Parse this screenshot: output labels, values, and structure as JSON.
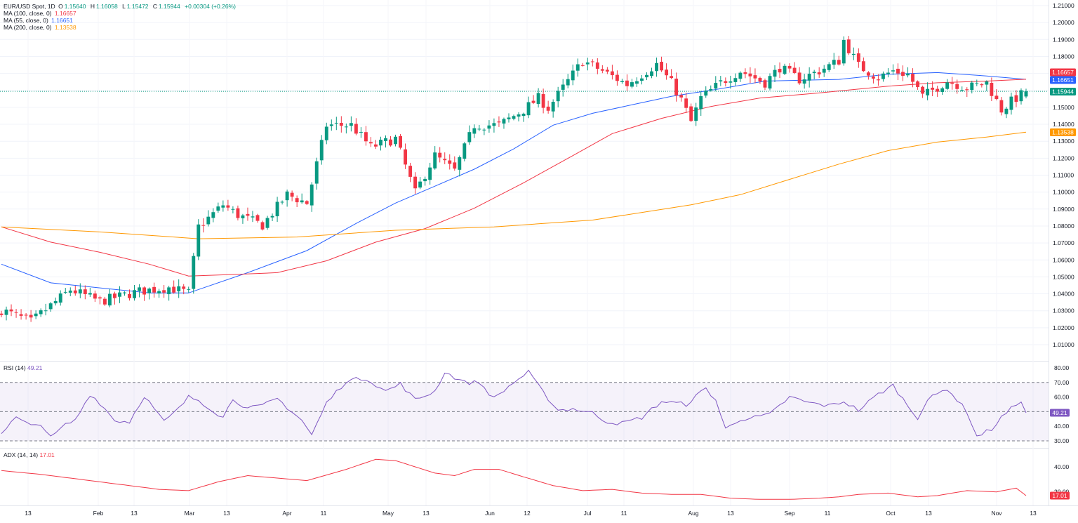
{
  "header": {
    "symbol": "EUR/USD Spot, 1D",
    "ohlc": [
      {
        "k": "O",
        "v": "1.15640"
      },
      {
        "k": "H",
        "v": "1.16058"
      },
      {
        "k": "L",
        "v": "1.15472"
      },
      {
        "k": "C",
        "v": "1.15944"
      }
    ],
    "change": "+0.00304 (+0.26%)"
  },
  "indicators": [
    {
      "label": "MA (100, close, 0)",
      "value": "1.16657",
      "color": "#f23645"
    },
    {
      "label": "MA (55, close, 0)",
      "value": "1.16651",
      "color": "#2962ff"
    },
    {
      "label": "MA (200, close, 0)",
      "value": "1.13538",
      "color": "#ff9800"
    }
  ],
  "rsi": {
    "label": "RSI (14)",
    "value": "49.21",
    "color": "#7e57c2"
  },
  "adx": {
    "label": "ADX (14, 14)",
    "value": "17.01",
    "color": "#f23645"
  },
  "price_badges": [
    {
      "text": "1.16657",
      "price": 1.16657,
      "color": "#f23645"
    },
    {
      "text": "1.16651",
      "price": 1.16651,
      "color": "#2962ff"
    },
    {
      "text": "1.15944",
      "price": 1.15944,
      "color": "#089981"
    },
    {
      "text": "1.13538",
      "price": 1.13538,
      "color": "#ff9800"
    }
  ],
  "colors": {
    "up": "#089981",
    "down": "#f23645",
    "ma55": "#2962ff",
    "ma100": "#f23645",
    "ma200": "#ff9800",
    "rsi": "#7e57c2",
    "adx": "#f23645"
  },
  "chart_data": [
    {
      "type": "candlestick",
      "title": "EUR/USD Spot, 1D",
      "x_labels": [
        "13",
        "Feb",
        "13",
        "Mar",
        "13",
        "Apr",
        "11",
        "May",
        "13",
        "Jun",
        "12",
        "Jul",
        "11",
        "Aug",
        "13",
        "Sep",
        "11",
        "Oct",
        "13",
        "Nov",
        "13"
      ],
      "y_ticks": [
        "1.21000",
        "1.20000",
        "1.19000",
        "1.18000",
        "1.17000",
        "1.16000",
        "1.15000",
        "1.14000",
        "1.13000",
        "1.12000",
        "1.11000",
        "1.10000",
        "1.09000",
        "1.08000",
        "1.07000",
        "1.06000",
        "1.05000",
        "1.04000",
        "1.03000",
        "1.02000",
        "1.01000"
      ],
      "ylim": [
        1.0,
        1.21
      ],
      "close_path": [
        {
          "i": 0,
          "c": 1.0305
        },
        {
          "i": 6,
          "c": 1.0235
        },
        {
          "i": 14,
          "c": 1.0425
        },
        {
          "i": 20,
          "c": 1.0355
        },
        {
          "i": 28,
          "c": 1.0415
        },
        {
          "i": 34,
          "c": 1.0438
        },
        {
          "i": 38,
          "c": 1.0405
        },
        {
          "i": 40,
          "c": 1.0795
        },
        {
          "i": 45,
          "c": 1.0925
        },
        {
          "i": 48,
          "c": 1.0865
        },
        {
          "i": 53,
          "c": 1.0805
        },
        {
          "i": 58,
          "c": 1.0985
        },
        {
          "i": 62,
          "c": 1.0935
        },
        {
          "i": 66,
          "c": 1.1395
        },
        {
          "i": 71,
          "c": 1.1395
        },
        {
          "i": 75,
          "c": 1.1265
        },
        {
          "i": 80,
          "c": 1.1315
        },
        {
          "i": 84,
          "c": 1.0995
        },
        {
          "i": 88,
          "c": 1.1215
        },
        {
          "i": 92,
          "c": 1.1125
        },
        {
          "i": 96,
          "c": 1.1395
        },
        {
          "i": 101,
          "c": 1.1395
        },
        {
          "i": 106,
          "c": 1.1485
        },
        {
          "i": 109,
          "c": 1.1555
        },
        {
          "i": 111,
          "c": 1.1495
        },
        {
          "i": 114,
          "c": 1.1615
        },
        {
          "i": 118,
          "c": 1.1775
        },
        {
          "i": 122,
          "c": 1.1715
        },
        {
          "i": 127,
          "c": 1.1635
        },
        {
          "i": 133,
          "c": 1.1755
        },
        {
          "i": 136,
          "c": 1.1645
        },
        {
          "i": 138,
          "c": 1.1545
        },
        {
          "i": 140,
          "c": 1.1415
        },
        {
          "i": 142,
          "c": 1.1555
        },
        {
          "i": 146,
          "c": 1.1645
        },
        {
          "i": 150,
          "c": 1.1715
        },
        {
          "i": 155,
          "c": 1.1645
        },
        {
          "i": 158,
          "c": 1.1735
        },
        {
          "i": 162,
          "c": 1.1665
        },
        {
          "i": 166,
          "c": 1.1715
        },
        {
          "i": 170,
          "c": 1.1775
        },
        {
          "i": 171,
          "c": 1.1895
        },
        {
          "i": 174,
          "c": 1.1745
        },
        {
          "i": 178,
          "c": 1.1675
        },
        {
          "i": 181,
          "c": 1.1715
        },
        {
          "i": 184,
          "c": 1.1695
        },
        {
          "i": 187,
          "c": 1.1565
        },
        {
          "i": 192,
          "c": 1.1655
        },
        {
          "i": 196,
          "c": 1.1615
        },
        {
          "i": 200,
          "c": 1.1645
        },
        {
          "i": 203,
          "c": 1.1485
        },
        {
          "i": 205,
          "c": 1.1535
        },
        {
          "i": 208,
          "c": 1.1594
        }
      ],
      "ma_series": [
        {
          "name": "MA (55, close, 0)",
          "points": [
            [
              0,
              1.0575
            ],
            [
              10,
              1.0465
            ],
            [
              20,
              1.0435
            ],
            [
              30,
              1.0405
            ],
            [
              38,
              1.0405
            ],
            [
              50,
              1.0525
            ],
            [
              62,
              1.0655
            ],
            [
              72,
              1.0815
            ],
            [
              80,
              1.0935
            ],
            [
              88,
              1.1035
            ],
            [
              96,
              1.1135
            ],
            [
              104,
              1.1255
            ],
            [
              112,
              1.1395
            ],
            [
              120,
              1.1465
            ],
            [
              128,
              1.1515
            ],
            [
              136,
              1.1565
            ],
            [
              145,
              1.1605
            ],
            [
              155,
              1.1655
            ],
            [
              170,
              1.1665
            ],
            [
              180,
              1.1695
            ],
            [
              190,
              1.1705
            ],
            [
              200,
              1.1685
            ],
            [
              208,
              1.16651
            ]
          ]
        },
        {
          "name": "MA (100, close, 0)",
          "points": [
            [
              0,
              1.0795
            ],
            [
              10,
              1.0705
            ],
            [
              20,
              1.0645
            ],
            [
              30,
              1.0575
            ],
            [
              38,
              1.0505
            ],
            [
              48,
              1.0515
            ],
            [
              56,
              1.0525
            ],
            [
              66,
              1.0595
            ],
            [
              76,
              1.0705
            ],
            [
              86,
              1.0785
            ],
            [
              96,
              1.0905
            ],
            [
              106,
              1.1055
            ],
            [
              116,
              1.1215
            ],
            [
              124,
              1.1345
            ],
            [
              134,
              1.1435
            ],
            [
              144,
              1.1505
            ],
            [
              154,
              1.1555
            ],
            [
              166,
              1.1585
            ],
            [
              180,
              1.1625
            ],
            [
              190,
              1.1645
            ],
            [
              200,
              1.1655
            ],
            [
              208,
              1.16657
            ]
          ]
        },
        {
          "name": "MA (200, close, 0)",
          "points": [
            [
              0,
              1.0795
            ],
            [
              20,
              1.0765
            ],
            [
              40,
              1.0725
            ],
            [
              60,
              1.0735
            ],
            [
              80,
              1.0775
            ],
            [
              100,
              1.0795
            ],
            [
              120,
              1.0835
            ],
            [
              140,
              1.0925
            ],
            [
              150,
              1.0985
            ],
            [
              160,
              1.1075
            ],
            [
              170,
              1.1165
            ],
            [
              180,
              1.1245
            ],
            [
              190,
              1.1295
            ],
            [
              200,
              1.1325
            ],
            [
              208,
              1.13538
            ]
          ]
        }
      ]
    },
    {
      "type": "line",
      "name": "RSI (14)",
      "y_ticks": [
        "80.00",
        "70.00",
        "60.00",
        "50.00",
        "40.00",
        "30.00"
      ],
      "ylim": [
        28,
        81
      ],
      "bands": [
        30,
        50,
        70
      ],
      "points": [
        [
          0,
          35
        ],
        [
          3,
          46
        ],
        [
          6,
          40
        ],
        [
          8,
          42
        ],
        [
          10,
          32
        ],
        [
          13,
          41
        ],
        [
          15,
          44
        ],
        [
          18,
          62
        ],
        [
          20,
          56
        ],
        [
          23,
          44
        ],
        [
          26,
          43
        ],
        [
          29,
          61
        ],
        [
          33,
          43
        ],
        [
          36,
          52
        ],
        [
          38,
          60
        ],
        [
          40,
          58
        ],
        [
          45,
          46
        ],
        [
          47,
          59
        ],
        [
          50,
          52
        ],
        [
          53,
          54
        ],
        [
          56,
          59
        ],
        [
          61,
          44
        ],
        [
          63,
          34
        ],
        [
          66,
          56
        ],
        [
          70,
          71
        ],
        [
          74,
          73
        ],
        [
          78,
          64
        ],
        [
          81,
          69
        ],
        [
          84,
          58
        ],
        [
          88,
          64
        ],
        [
          90,
          77
        ],
        [
          94,
          70
        ],
        [
          97,
          70
        ],
        [
          100,
          59
        ],
        [
          104,
          70
        ],
        [
          107,
          77
        ],
        [
          110,
          63
        ],
        [
          113,
          51
        ],
        [
          116,
          52
        ],
        [
          120,
          49
        ],
        [
          123,
          43
        ],
        [
          126,
          42
        ],
        [
          130,
          46
        ],
        [
          134,
          57
        ],
        [
          139,
          55
        ],
        [
          143,
          66
        ],
        [
          145,
          58
        ],
        [
          147,
          38
        ],
        [
          150,
          45
        ],
        [
          153,
          46
        ],
        [
          156,
          48
        ],
        [
          160,
          60
        ],
        [
          164,
          56
        ],
        [
          168,
          54
        ],
        [
          171,
          57
        ],
        [
          174,
          51
        ],
        [
          178,
          62
        ],
        [
          181,
          68
        ],
        [
          184,
          54
        ],
        [
          186,
          46
        ],
        [
          188,
          58
        ],
        [
          192,
          66
        ],
        [
          196,
          50
        ],
        [
          198,
          33
        ],
        [
          201,
          38
        ],
        [
          203,
          46
        ],
        [
          205,
          52
        ],
        [
          207,
          58
        ],
        [
          208,
          49.21
        ]
      ]
    },
    {
      "type": "line",
      "name": "ADX (14, 14)",
      "y_ticks": [
        "40.00",
        "20.00"
      ],
      "ylim": [
        12,
        50
      ],
      "points": [
        [
          0,
          37
        ],
        [
          8,
          34
        ],
        [
          16,
          30
        ],
        [
          24,
          26
        ],
        [
          32,
          22
        ],
        [
          38,
          21
        ],
        [
          44,
          28
        ],
        [
          50,
          33
        ],
        [
          56,
          31
        ],
        [
          62,
          29
        ],
        [
          70,
          38
        ],
        [
          76,
          46
        ],
        [
          80,
          45
        ],
        [
          84,
          40
        ],
        [
          88,
          35
        ],
        [
          92,
          33
        ],
        [
          96,
          38
        ],
        [
          101,
          38
        ],
        [
          106,
          32
        ],
        [
          112,
          25
        ],
        [
          118,
          21
        ],
        [
          124,
          22
        ],
        [
          130,
          19
        ],
        [
          136,
          18
        ],
        [
          142,
          18
        ],
        [
          148,
          15
        ],
        [
          154,
          14
        ],
        [
          160,
          14
        ],
        [
          166,
          15
        ],
        [
          170,
          16
        ],
        [
          174,
          18
        ],
        [
          180,
          19
        ],
        [
          186,
          16
        ],
        [
          190,
          17
        ],
        [
          196,
          21
        ],
        [
          202,
          20
        ],
        [
          206,
          23
        ],
        [
          208,
          17.01
        ]
      ]
    }
  ]
}
